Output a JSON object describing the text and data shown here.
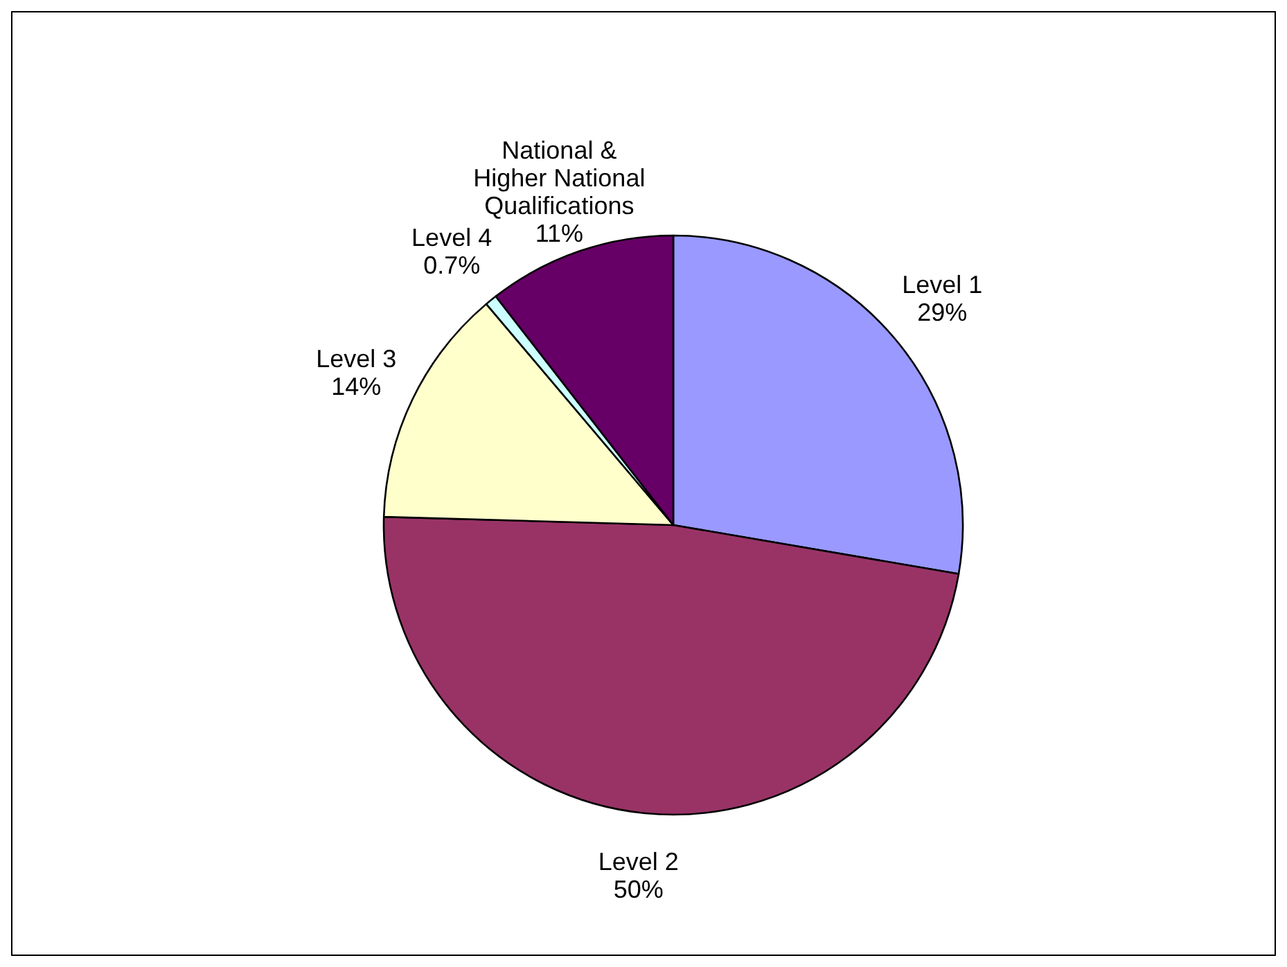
{
  "chart_data": {
    "type": "pie",
    "categories": [
      "Level 1",
      "Level 2",
      "Level 3",
      "Level 4",
      "National & Higher National Qualifications"
    ],
    "values": [
      29,
      50,
      14,
      0.7,
      11
    ],
    "value_labels": [
      "29%",
      "50%",
      "14%",
      "0.7%",
      "11%"
    ],
    "colors": [
      "#9999ff",
      "#993366",
      "#ffffcc",
      "#ccffff",
      "#660066"
    ]
  }
}
